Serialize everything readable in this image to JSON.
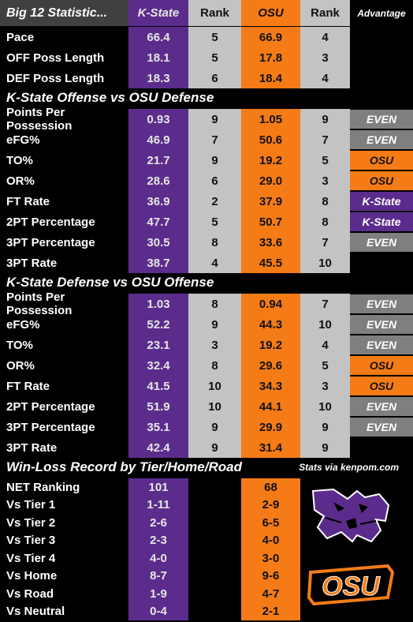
{
  "header": {
    "title": "Big 12 Statistic...",
    "team1": "K-State",
    "rank1": "Rank",
    "team2": "OSU",
    "rank2": "Rank",
    "advantage": "Advantage"
  },
  "tempo_rows": [
    {
      "label": "Pace",
      "ks": "66.4",
      "ks_rank": "5",
      "osu": "66.9",
      "osu_rank": "4",
      "adv": ""
    },
    {
      "label": "OFF Poss Length",
      "ks": "18.1",
      "ks_rank": "5",
      "osu": "17.8",
      "osu_rank": "3",
      "adv": ""
    },
    {
      "label": "DEF Poss Length",
      "ks": "18.3",
      "ks_rank": "6",
      "osu": "18.4",
      "osu_rank": "4",
      "adv": ""
    }
  ],
  "section1": "K-State Offense vs OSU Defense",
  "offense_rows": [
    {
      "label": "Points Per Possession",
      "ks": "0.93",
      "ks_rank": "9",
      "osu": "1.05",
      "osu_rank": "9",
      "adv": "EVEN"
    },
    {
      "label": "eFG%",
      "ks": "46.9",
      "ks_rank": "7",
      "osu": "50.6",
      "osu_rank": "7",
      "adv": "EVEN"
    },
    {
      "label": "TO%",
      "ks": "21.7",
      "ks_rank": "9",
      "osu": "19.2",
      "osu_rank": "5",
      "adv": "OSU"
    },
    {
      "label": "OR%",
      "ks": "28.6",
      "ks_rank": "6",
      "osu": "29.0",
      "osu_rank": "3",
      "adv": "OSU"
    },
    {
      "label": "FT Rate",
      "ks": "36.9",
      "ks_rank": "2",
      "osu": "37.9",
      "osu_rank": "8",
      "adv": "K-State"
    },
    {
      "label": "2PT Percentage",
      "ks": "47.7",
      "ks_rank": "5",
      "osu": "50.7",
      "osu_rank": "8",
      "adv": "K-State"
    },
    {
      "label": "3PT Percentage",
      "ks": "30.5",
      "ks_rank": "8",
      "osu": "33.6",
      "osu_rank": "7",
      "adv": "EVEN"
    },
    {
      "label": "3PT Rate",
      "ks": "38.7",
      "ks_rank": "4",
      "osu": "45.5",
      "osu_rank": "10",
      "adv": ""
    }
  ],
  "section2": "K-State Defense vs OSU Offense",
  "defense_rows": [
    {
      "label": "Points Per Possession",
      "ks": "1.03",
      "ks_rank": "8",
      "osu": "0.94",
      "osu_rank": "7",
      "adv": "EVEN"
    },
    {
      "label": "eFG%",
      "ks": "52.2",
      "ks_rank": "9",
      "osu": "44.3",
      "osu_rank": "10",
      "adv": "EVEN"
    },
    {
      "label": "TO%",
      "ks": "23.1",
      "ks_rank": "3",
      "osu": "19.2",
      "osu_rank": "4",
      "adv": "EVEN"
    },
    {
      "label": "OR%",
      "ks": "32.4",
      "ks_rank": "8",
      "osu": "29.6",
      "osu_rank": "5",
      "adv": "OSU"
    },
    {
      "label": "FT Rate",
      "ks": "41.5",
      "ks_rank": "10",
      "osu": "34.3",
      "osu_rank": "3",
      "adv": "OSU"
    },
    {
      "label": "2PT Percentage",
      "ks": "51.9",
      "ks_rank": "10",
      "osu": "44.1",
      "osu_rank": "10",
      "adv": "EVEN"
    },
    {
      "label": "3PT Percentage",
      "ks": "35.1",
      "ks_rank": "9",
      "osu": "29.9",
      "osu_rank": "9",
      "adv": "EVEN"
    },
    {
      "label": "3PT Rate",
      "ks": "42.4",
      "ks_rank": "9",
      "osu": "31.4",
      "osu_rank": "9",
      "adv": ""
    }
  ],
  "section3": "Win-Loss Record by Tier/Home/Road",
  "credit": "Stats via kenpom.com",
  "record_rows": [
    {
      "label": "NET Ranking",
      "ks": "101",
      "osu": "68"
    },
    {
      "label": "Vs Tier 1",
      "ks": "1-11",
      "osu": "2-9"
    },
    {
      "label": "Vs Tier 2",
      "ks": "2-6",
      "osu": "6-5"
    },
    {
      "label": "Vs Tier 3",
      "ks": "2-3",
      "osu": "4-0"
    },
    {
      "label": "Vs Tier 4",
      "ks": "4-0",
      "osu": "3-0"
    },
    {
      "label": "Vs Home",
      "ks": "8-7",
      "osu": "9-6"
    },
    {
      "label": "Vs Road",
      "ks": "1-9",
      "osu": "4-7"
    },
    {
      "label": "Vs Neutral",
      "ks": "0-4",
      "osu": "2-1"
    }
  ],
  "logos": {
    "wildcat": "wildcat-logo",
    "osu": "osu-logo",
    "osu_text": "OSU"
  },
  "colors": {
    "kstate_purple": "#5b2c8c",
    "osu_orange": "#f47b16",
    "rank_gray": "#c3c3c3",
    "even_gray": "#7f7f7f"
  }
}
